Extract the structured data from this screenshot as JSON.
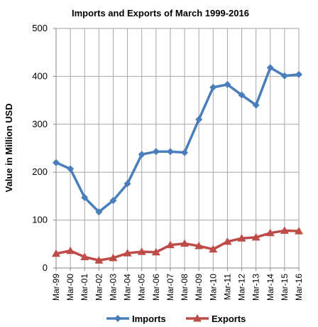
{
  "chart_data": {
    "type": "line",
    "title": "Imports and Exports of March 1999-2016",
    "xlabel": "",
    "ylabel": "Value in  Million  USD",
    "ylim": [
      0,
      500
    ],
    "yticks": [
      0,
      100,
      200,
      300,
      400,
      500
    ],
    "grid": true,
    "legend_position": "bottom",
    "categories": [
      "Mar-99",
      "Mar-00",
      "Mar-01",
      "Mar-02",
      "Mar-03",
      "Mar-04",
      "Mar-05",
      "Mar-06",
      "Mar-07",
      "Mar-08",
      "Mar-09",
      "Mar-10",
      "Mar-11",
      "Mar-12",
      "Mar-13",
      "Mar-14",
      "Mar-15",
      "Mar-16"
    ],
    "series": [
      {
        "name": "Imports",
        "color": "#4a7ebb",
        "marker": "diamond",
        "values": [
          220,
          207,
          147,
          117,
          141,
          176,
          237,
          243,
          243,
          241,
          310,
          377,
          383,
          361,
          340,
          418,
          401,
          404
        ]
      },
      {
        "name": "Exports",
        "color": "#be4b48",
        "marker": "triangle",
        "values": [
          30,
          36,
          23,
          16,
          21,
          31,
          34,
          33,
          48,
          51,
          46,
          39,
          55,
          62,
          64,
          73,
          78,
          77
        ]
      }
    ]
  }
}
